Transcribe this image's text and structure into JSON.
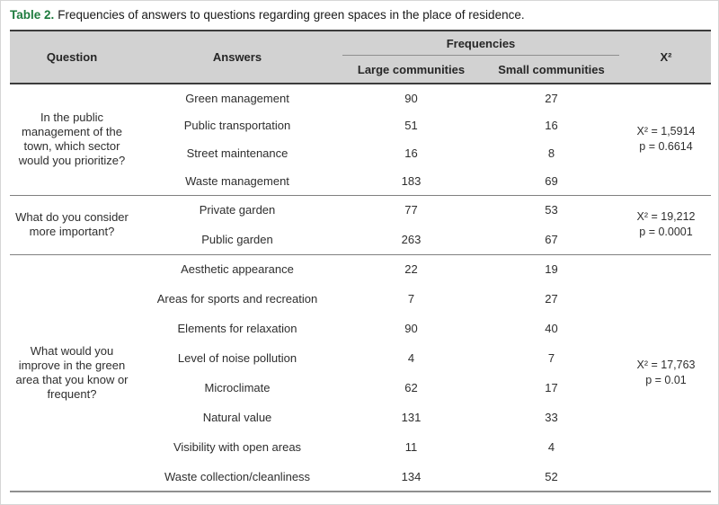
{
  "caption": {
    "label": "Table 2.",
    "text": "Frequencies of answers to questions regarding green spaces in the place of residence."
  },
  "table": {
    "headers": {
      "question": "Question",
      "answers": "Answers",
      "frequencies": "Frequencies",
      "large": "Large communities",
      "small": "Small communities",
      "chi_squared": "X²"
    },
    "groups": [
      {
        "question": "In the public management of the town, which sector would you prioritize?",
        "chi": "X² = 1,5914",
        "p": "p = 0.6614",
        "rows": [
          {
            "answer": "Green management",
            "large": "90",
            "small": "27"
          },
          {
            "answer": "Public transportation",
            "large": "51",
            "small": "16"
          },
          {
            "answer": "Street maintenance",
            "large": "16",
            "small": "8"
          },
          {
            "answer": "Waste management",
            "large": "183",
            "small": "69"
          }
        ]
      },
      {
        "question": "What do you consider more important?",
        "chi": "X² = 19,212",
        "p": "p = 0.0001",
        "rows": [
          {
            "answer": "Private garden",
            "large": "77",
            "small": "53"
          },
          {
            "answer": "Public garden",
            "large": "263",
            "small": "67"
          }
        ]
      },
      {
        "question": "What would you improve in the green area that you know or frequent?",
        "chi": "X² = 17,763",
        "p": "p = 0.01",
        "rows": [
          {
            "answer": "Aesthetic appearance",
            "large": "22",
            "small": "19"
          },
          {
            "answer": "Areas for sports and recreation",
            "large": "7",
            "small": "27"
          },
          {
            "answer": "Elements for relaxation",
            "large": "90",
            "small": "40"
          },
          {
            "answer": "Level of noise pollution",
            "large": "4",
            "small": "7"
          },
          {
            "answer": "Microclimate",
            "large": "62",
            "small": "17"
          },
          {
            "answer": "Natural value",
            "large": "131",
            "small": "33"
          },
          {
            "answer": "Visibility with open areas",
            "large": "11",
            "small": "4"
          },
          {
            "answer": "Waste collection/cleanliness",
            "large": "134",
            "small": "52"
          }
        ]
      }
    ]
  },
  "colors": {
    "caption_label_green": "#1e7b3e",
    "header_background": "#d2d2d2",
    "dark_border": "#3c3c3c",
    "separator_gray": "#808080",
    "bottom_border_gray": "#8f8f8f"
  }
}
